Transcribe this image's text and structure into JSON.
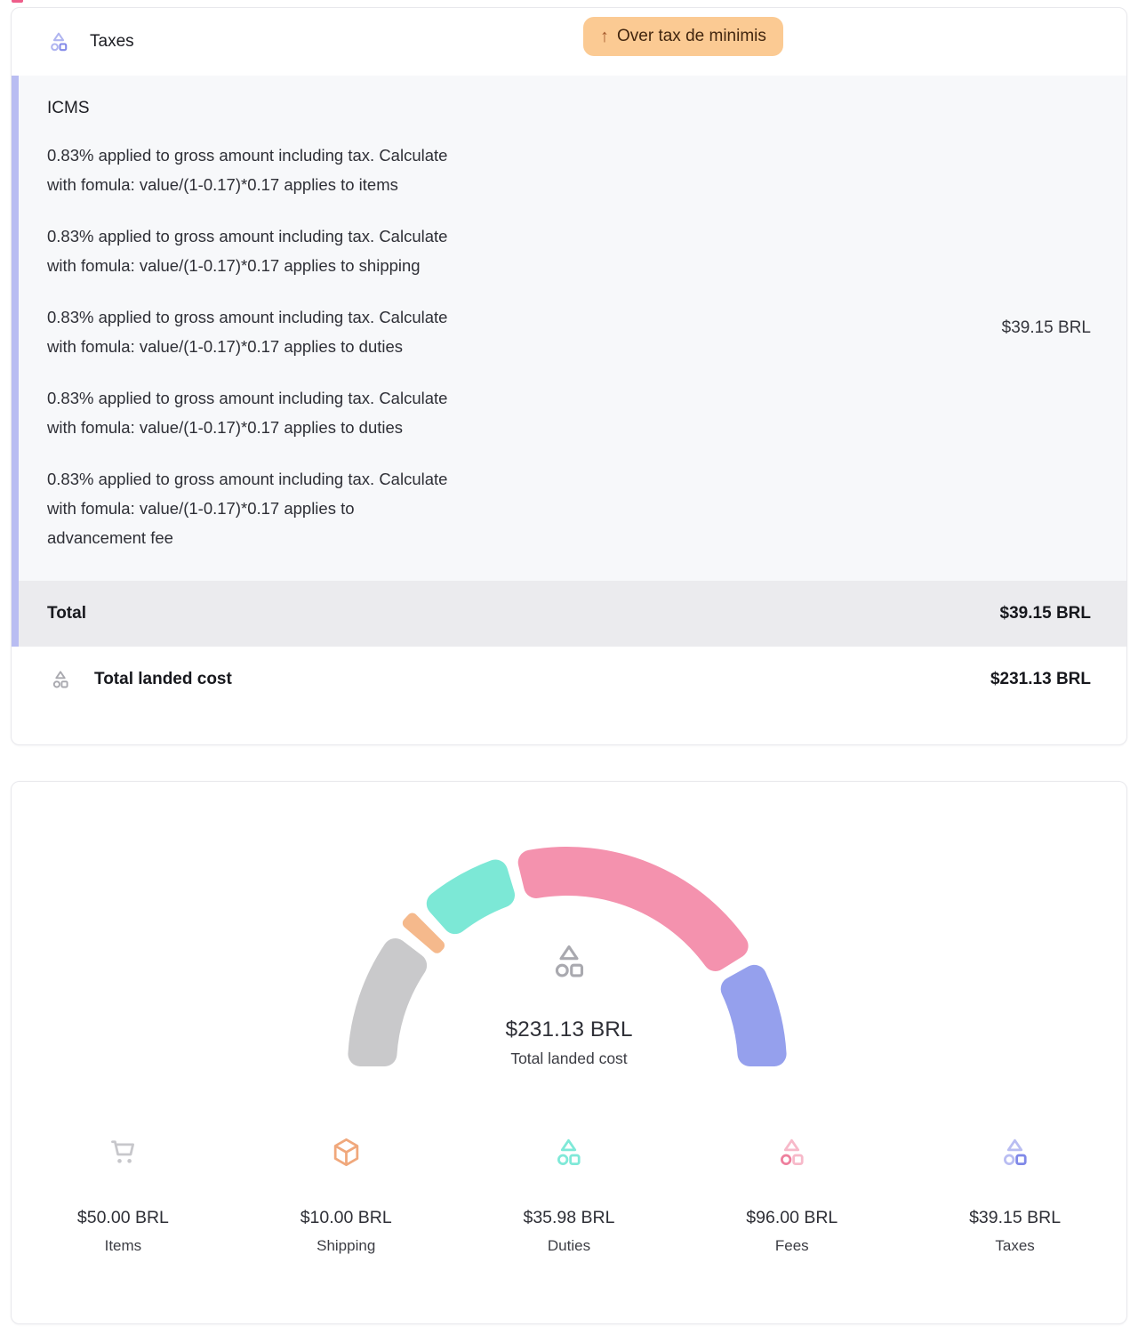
{
  "theme": {
    "page_bg": "#ffffff",
    "card_border": "#e8e8ec",
    "panel_bg": "#f7f8fa",
    "accent_bar": "#b9bdf2",
    "total_row_bg": "#ebebee",
    "badge_bg": "#fbca93",
    "badge_text": "#42260f",
    "badge_arrow": "#a4582b",
    "icon_gray": "#a9a9af",
    "icon_purple_muted": "#b0b5f0",
    "icon_purple_accent": "#8289e8",
    "top_fragment": "#ee5d8a"
  },
  "tax_section": {
    "title": "Taxes",
    "badge": {
      "arrow": "↑",
      "label": "Over tax de minimis"
    },
    "icms": {
      "heading": "ICMS",
      "lines": [
        "0.83% applied to gross amount including tax. Calculate\nwith fomula: value/(1-0.17)*0.17 applies to items",
        "0.83% applied to gross amount including tax. Calculate\nwith fomula: value/(1-0.17)*0.17 applies to shipping",
        "0.83% applied to gross amount including tax. Calculate\nwith fomula: value/(1-0.17)*0.17 applies to duties",
        "0.83% applied to gross amount including tax. Calculate\nwith fomula: value/(1-0.17)*0.17 applies to duties",
        "0.83% applied to gross amount including tax. Calculate\nwith fomula: value/(1-0.17)*0.17 applies to\nadvancement fee"
      ],
      "amount": "$39.15 BRL"
    },
    "total": {
      "label": "Total",
      "amount": "$39.15 BRL"
    },
    "landed": {
      "label": "Total landed cost",
      "amount": "$231.13 BRL"
    }
  },
  "chart_data": {
    "type": "gauge",
    "title": "Total landed cost",
    "center_value": "$231.13 BRL",
    "center_label": "Total landed cost",
    "total": 231.13,
    "currency": "BRL",
    "categories": [
      "Items",
      "Shipping",
      "Duties",
      "Fees",
      "Taxes"
    ],
    "values": [
      50.0,
      10.0,
      35.98,
      96.0,
      39.15
    ],
    "value_labels": [
      "$50.00 BRL",
      "$10.00 BRL",
      "$35.98 BRL",
      "$96.00 BRL",
      "$39.15 BRL"
    ],
    "colors": [
      "#c9c9cb",
      "#f5b98c",
      "#7ce8d6",
      "#f492ae",
      "#95a0ed"
    ],
    "arc": {
      "start_deg": 180,
      "end_deg": 0,
      "outer_radius": 247,
      "inner_radius": 192,
      "corner_radius": 14,
      "gap_deg": 3.2
    },
    "legend_icons": [
      {
        "icon": "cart-icon",
        "color": "#c7c7cb",
        "accent": "#c7c7cb"
      },
      {
        "icon": "package-icon",
        "color": "#f0a87c",
        "accent": "#f0a87c"
      },
      {
        "icon": "shapes-icon",
        "color": "#7fe9d8",
        "accent": "#7fe9d8"
      },
      {
        "icon": "shapes-icon",
        "color": "#f7b9c9",
        "accent": "#ee7f9d"
      },
      {
        "icon": "shapes-icon",
        "color": "#b9bdf2",
        "accent": "#7f88e8"
      }
    ]
  }
}
